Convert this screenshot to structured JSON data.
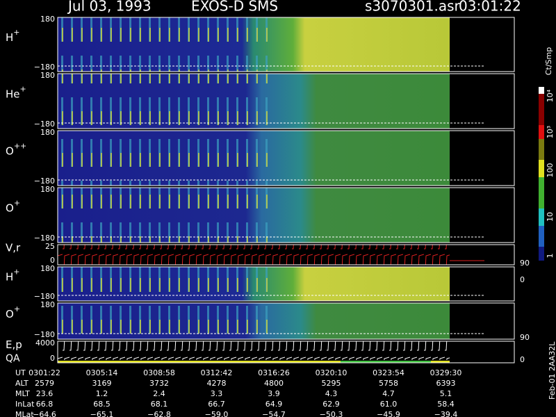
{
  "header": {
    "date": "Jul 03, 1993",
    "instrument": "EXOS-D SMS",
    "file": "s3070301.asr",
    "time": "03:01:22"
  },
  "panels": [
    {
      "label": {
        "base": "H",
        "sup": "+"
      },
      "top": "180",
      "bottom": "−180",
      "style": "hot"
    },
    {
      "label": {
        "base": "He",
        "sup": "+"
      },
      "top": "180",
      "bottom": "−180",
      "style": "warm"
    },
    {
      "label": {
        "base": "O",
        "sup": "++"
      },
      "top": "180",
      "bottom": "−180",
      "style": "warm"
    },
    {
      "label": {
        "base": "O",
        "sup": "+"
      },
      "top": "180",
      "bottom": "−180",
      "style": "warm"
    },
    {
      "label": {
        "base": "V,r",
        "sup": ""
      },
      "top": "25",
      "bottom": "0",
      "right_top": "90",
      "right_bottom": "0",
      "style": "velocity"
    },
    {
      "label": {
        "base": "H",
        "sup": "+"
      },
      "top": "180",
      "bottom": "−180",
      "style": "hot"
    },
    {
      "label": {
        "base": "O",
        "sup": "+"
      },
      "top": "180",
      "bottom": "−180",
      "right_top": "90",
      "style": "warm"
    },
    {
      "label": {
        "base": "E,p",
        "sup": ""
      },
      "label2": "QA",
      "top": "4000",
      "bottom": "0",
      "right_bottom": "0",
      "style": "energy"
    }
  ],
  "colorbar": {
    "title": "Ct/Smp",
    "labels": [
      "10⁴",
      "10³",
      "100",
      "10",
      "1"
    ]
  },
  "footer": {
    "rows": [
      {
        "label": "UT",
        "values": [
          "0301:22",
          "0305:14",
          "0308:58",
          "0312:42",
          "0316:26",
          "0320:10",
          "0323:54",
          "0329:30"
        ]
      },
      {
        "label": "ALT",
        "values": [
          "2579",
          "3169",
          "3732",
          "4278",
          "4800",
          "5295",
          "5758",
          "6393"
        ]
      },
      {
        "label": "MLT",
        "values": [
          "23.6",
          "1.2",
          "2.4",
          "3.3",
          "3.9",
          "4.3",
          "4.7",
          "5.1"
        ]
      },
      {
        "label": "InLat",
        "values": [
          "66.8",
          "68.5",
          "68.1",
          "66.7",
          "64.9",
          "62.9",
          "61.0",
          "58.4"
        ]
      },
      {
        "label": "MLat",
        "values": [
          "−64.6",
          "−65.1",
          "−62.8",
          "−59.0",
          "−54.7",
          "−50.3",
          "−45.9",
          "−39.4"
        ]
      }
    ]
  },
  "side_note": "Feb-01 2AA32L"
}
